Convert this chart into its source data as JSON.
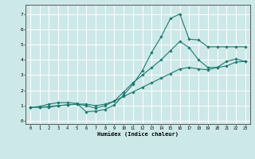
{
  "xlabel": "Humidex (Indice chaleur)",
  "ylabel": "",
  "background_color": "#cde8e8",
  "grid_color": "#ffffff",
  "line_color": "#1a7a6e",
  "xlim": [
    -0.5,
    23.5
  ],
  "ylim": [
    -0.2,
    7.6
  ],
  "xticks": [
    0,
    1,
    2,
    3,
    4,
    5,
    6,
    7,
    8,
    9,
    10,
    11,
    12,
    13,
    14,
    15,
    16,
    17,
    18,
    19,
    20,
    21,
    22,
    23
  ],
  "yticks": [
    0,
    1,
    2,
    3,
    4,
    5,
    6,
    7
  ],
  "line1_x": [
    0,
    1,
    2,
    3,
    4,
    5,
    6,
    7,
    8,
    9,
    10,
    11,
    12,
    13,
    14,
    15,
    16,
    17,
    18,
    19,
    20,
    21,
    22,
    23
  ],
  "line1_y": [
    0.9,
    0.95,
    1.1,
    1.2,
    1.2,
    1.15,
    0.6,
    0.65,
    0.75,
    1.05,
    1.7,
    2.4,
    3.3,
    4.5,
    5.5,
    6.7,
    7.0,
    5.35,
    5.3,
    4.85,
    4.85,
    4.85,
    4.85,
    4.85
  ],
  "line2_x": [
    0,
    1,
    2,
    3,
    4,
    5,
    6,
    7,
    8,
    9,
    10,
    11,
    12,
    13,
    14,
    15,
    16,
    17,
    18,
    19,
    20,
    21,
    22,
    23
  ],
  "line2_y": [
    0.9,
    0.9,
    0.9,
    1.0,
    1.05,
    1.1,
    1.0,
    0.85,
    1.0,
    1.3,
    1.9,
    2.5,
    3.0,
    3.5,
    4.0,
    4.6,
    5.2,
    4.8,
    4.0,
    3.5,
    3.5,
    3.9,
    4.05,
    3.9
  ],
  "line3_x": [
    0,
    1,
    2,
    3,
    4,
    5,
    6,
    7,
    8,
    9,
    10,
    11,
    12,
    13,
    14,
    15,
    16,
    17,
    18,
    19,
    20,
    21,
    22,
    23
  ],
  "line3_y": [
    0.9,
    0.9,
    0.95,
    1.0,
    1.05,
    1.1,
    1.1,
    1.0,
    1.1,
    1.3,
    1.6,
    1.9,
    2.2,
    2.5,
    2.8,
    3.1,
    3.4,
    3.5,
    3.4,
    3.35,
    3.5,
    3.6,
    3.85,
    3.9
  ]
}
